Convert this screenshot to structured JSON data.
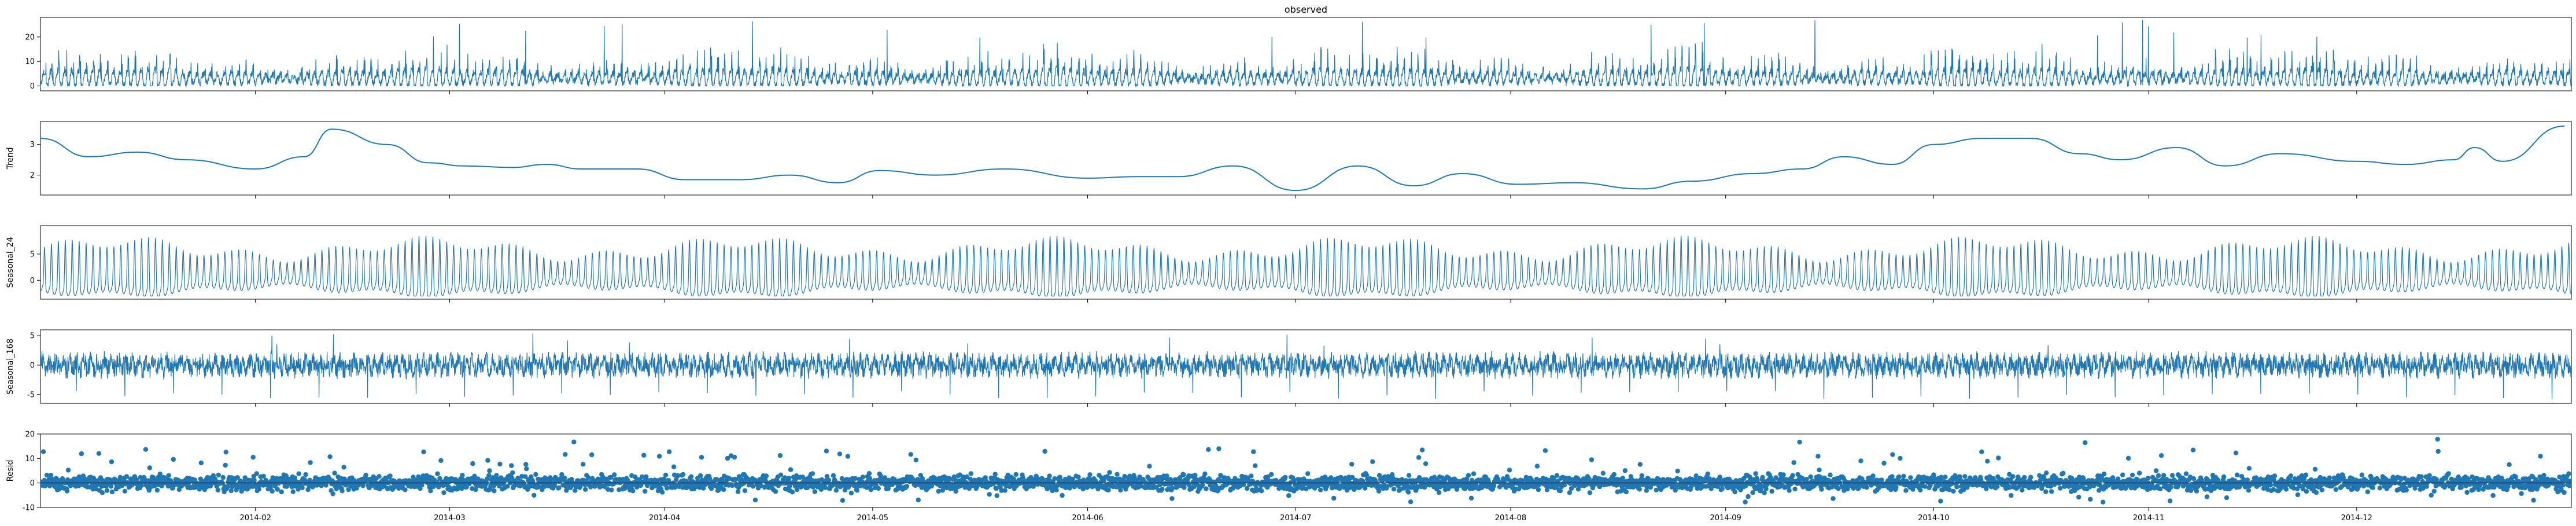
{
  "chart_data": [
    {
      "type": "line",
      "title": "observed",
      "ylabel": "",
      "ylim": [
        -2,
        28
      ],
      "yticks": [
        0,
        10,
        20
      ],
      "pattern": {
        "kind": "spiky",
        "base": 2.5,
        "amp": 8.0,
        "max": 27.0
      },
      "color": "#1f77b4"
    },
    {
      "type": "line",
      "title": "",
      "ylabel": "Trend",
      "ylim": [
        1.35,
        3.75
      ],
      "yticks": [
        2,
        3
      ],
      "color": "#1f77b4",
      "x": [
        "2014-01-01",
        "2014-01-08",
        "2014-01-15",
        "2014-01-22",
        "2014-02-01",
        "2014-02-08",
        "2014-02-12",
        "2014-02-20",
        "2014-02-26",
        "2014-03-03",
        "2014-03-10",
        "2014-03-15",
        "2014-03-20",
        "2014-03-28",
        "2014-04-04",
        "2014-04-12",
        "2014-04-19",
        "2014-04-26",
        "2014-05-02",
        "2014-05-10",
        "2014-05-20",
        "2014-06-01",
        "2014-06-08",
        "2014-06-14",
        "2014-06-22",
        "2014-07-01",
        "2014-07-10",
        "2014-07-18",
        "2014-07-25",
        "2014-08-02",
        "2014-08-10",
        "2014-08-20",
        "2014-08-27",
        "2014-09-05",
        "2014-09-12",
        "2014-09-18",
        "2014-09-25",
        "2014-10-01",
        "2014-10-08",
        "2014-10-15",
        "2014-10-22",
        "2014-10-28",
        "2014-11-05",
        "2014-11-12",
        "2014-11-20",
        "2014-12-01",
        "2014-12-08",
        "2014-12-15",
        "2014-12-18",
        "2014-12-22",
        "2014-12-31"
      ],
      "values": [
        3.2,
        2.6,
        2.75,
        2.5,
        2.2,
        2.6,
        3.5,
        3.0,
        2.4,
        2.3,
        2.25,
        2.35,
        2.2,
        2.2,
        1.85,
        1.85,
        2.0,
        1.75,
        2.15,
        2.0,
        2.2,
        1.9,
        1.95,
        1.95,
        2.3,
        1.5,
        2.3,
        1.65,
        2.05,
        1.7,
        1.75,
        1.55,
        1.8,
        2.05,
        2.2,
        2.6,
        2.35,
        3.0,
        3.2,
        3.2,
        2.7,
        2.5,
        2.9,
        2.3,
        2.7,
        2.45,
        2.35,
        2.5,
        2.9,
        2.45,
        3.6
      ]
    },
    {
      "type": "line",
      "title": "",
      "ylabel": "Seasonal_24",
      "ylim": [
        -3.6,
        10.4
      ],
      "yticks": [
        0,
        5
      ],
      "pattern": {
        "kind": "daily",
        "base": 1.0,
        "amp": 5.0,
        "min": -3.0
      },
      "color": "#1f77b4"
    },
    {
      "type": "line",
      "title": "",
      "ylabel": "Seasonal_168",
      "ylim": [
        -6.5,
        6.0
      ],
      "yticks": [
        -5,
        0,
        5
      ],
      "pattern": {
        "kind": "weekly",
        "base": 0.0,
        "amp": 2.0,
        "min": -5.8,
        "max": 5.5
      },
      "color": "#1f77b4"
    },
    {
      "type": "scatter",
      "title": "",
      "ylabel": "Resid",
      "ylim": [
        -10,
        20
      ],
      "yticks": [
        -10,
        0,
        10,
        20
      ],
      "pattern": {
        "kind": "resid",
        "spread": 3.0,
        "max": 20.0,
        "min": -8.0
      },
      "color": "#1f77b4"
    }
  ],
  "x_axis": {
    "xlim": [
      "2014-01-01",
      "2014-12-31"
    ],
    "ticks": [
      "2014-02",
      "2014-03",
      "2014-04",
      "2014-05",
      "2014-06",
      "2014-07",
      "2014-08",
      "2014-09",
      "2014-10",
      "2014-11",
      "2014-12"
    ]
  }
}
